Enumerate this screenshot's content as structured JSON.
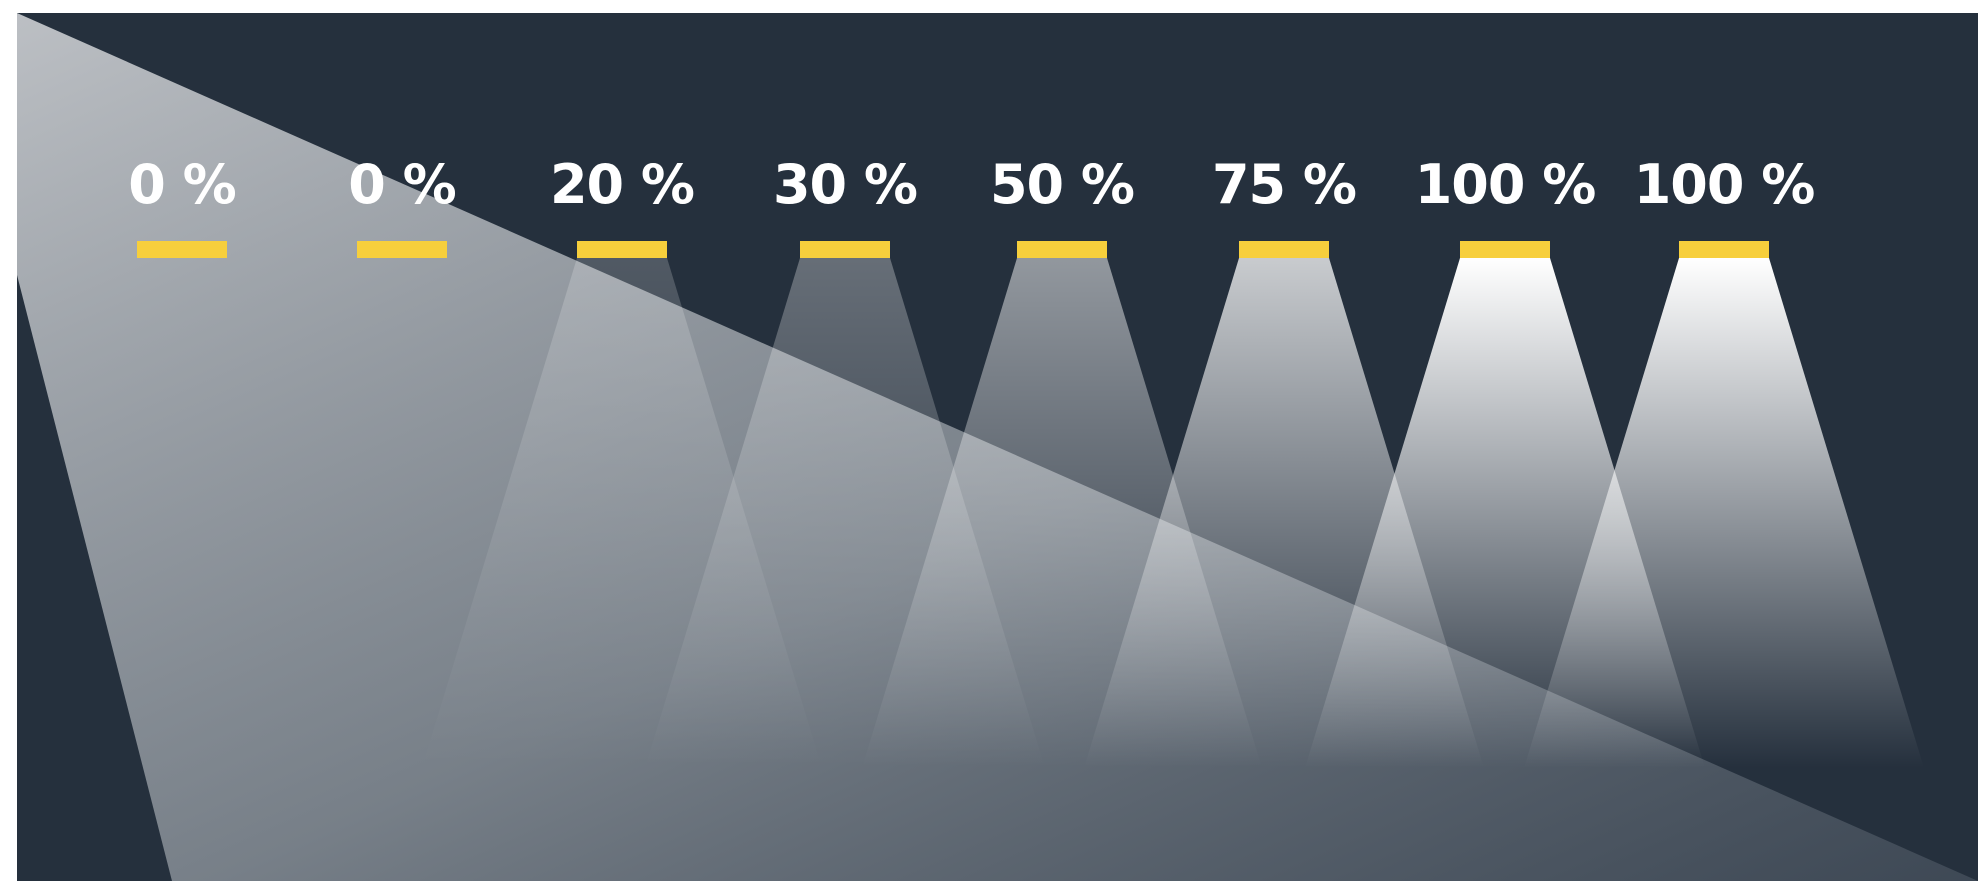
{
  "levels": [
    {
      "label": "0 %",
      "brightness": 0
    },
    {
      "label": "0 %",
      "brightness": 0
    },
    {
      "label": "20 %",
      "brightness": 20
    },
    {
      "label": "30 %",
      "brightness": 30
    },
    {
      "label": "50 %",
      "brightness": 50
    },
    {
      "label": "75 %",
      "brightness": 75
    },
    {
      "label": "100 %",
      "brightness": 100
    },
    {
      "label": "100 %",
      "brightness": 100
    }
  ],
  "colors": {
    "background": "#25303d",
    "fixture": "#f7cf3c",
    "light": "#ffffff",
    "daylight": "#bfc3c8"
  }
}
